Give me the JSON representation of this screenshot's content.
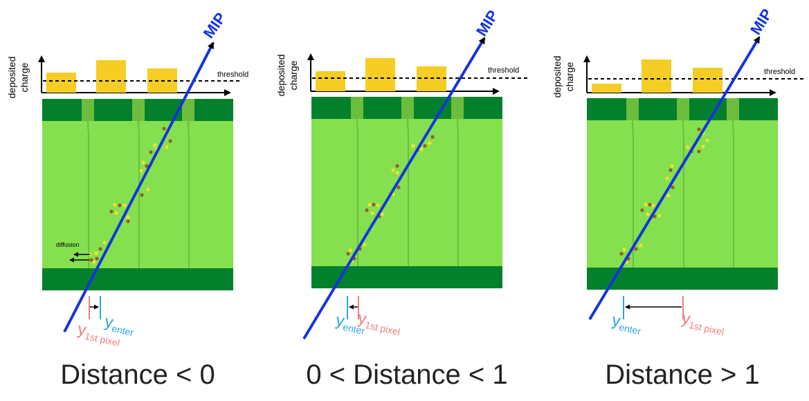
{
  "panels": [
    {
      "caption": "Distance < 0",
      "axis_label_line1": "deposited",
      "axis_label_line2": "charge",
      "threshold_label": "threshold",
      "track_label": "MIP",
      "diffusion_label": "diffusion",
      "y_enter_base": "y",
      "y_enter_sub": "enter",
      "y_first_base": "y",
      "y_first_sub": "1st pixel"
    },
    {
      "caption": "0 < Distance < 1",
      "axis_label_line1": "deposited",
      "axis_label_line2": "charge",
      "threshold_label": "threshold",
      "track_label": "MIP",
      "y_enter_base": "y",
      "y_enter_sub": "enter",
      "y_first_base": "y",
      "y_first_sub": "1st pixel"
    },
    {
      "caption": "Distance > 1",
      "axis_label_line1": "deposited",
      "axis_label_line2": "charge",
      "threshold_label": "threshold",
      "track_label": "MIP",
      "y_enter_base": "y",
      "y_enter_sub": "enter",
      "y_first_base": "y",
      "y_first_sub": "1st pixel"
    }
  ],
  "colors": {
    "track": "#1433e0",
    "charge_bar": "#f5cd25",
    "pixel_light": "#84e04e",
    "pixel_dark": "#03802b",
    "implant": "#6cbd3d",
    "y_enter": "#2aa6e8",
    "y_first_pixel": "#f27d7d",
    "charge_dot_yellow": "#f3e12c",
    "charge_dot_brown": "#9a5a2a"
  }
}
